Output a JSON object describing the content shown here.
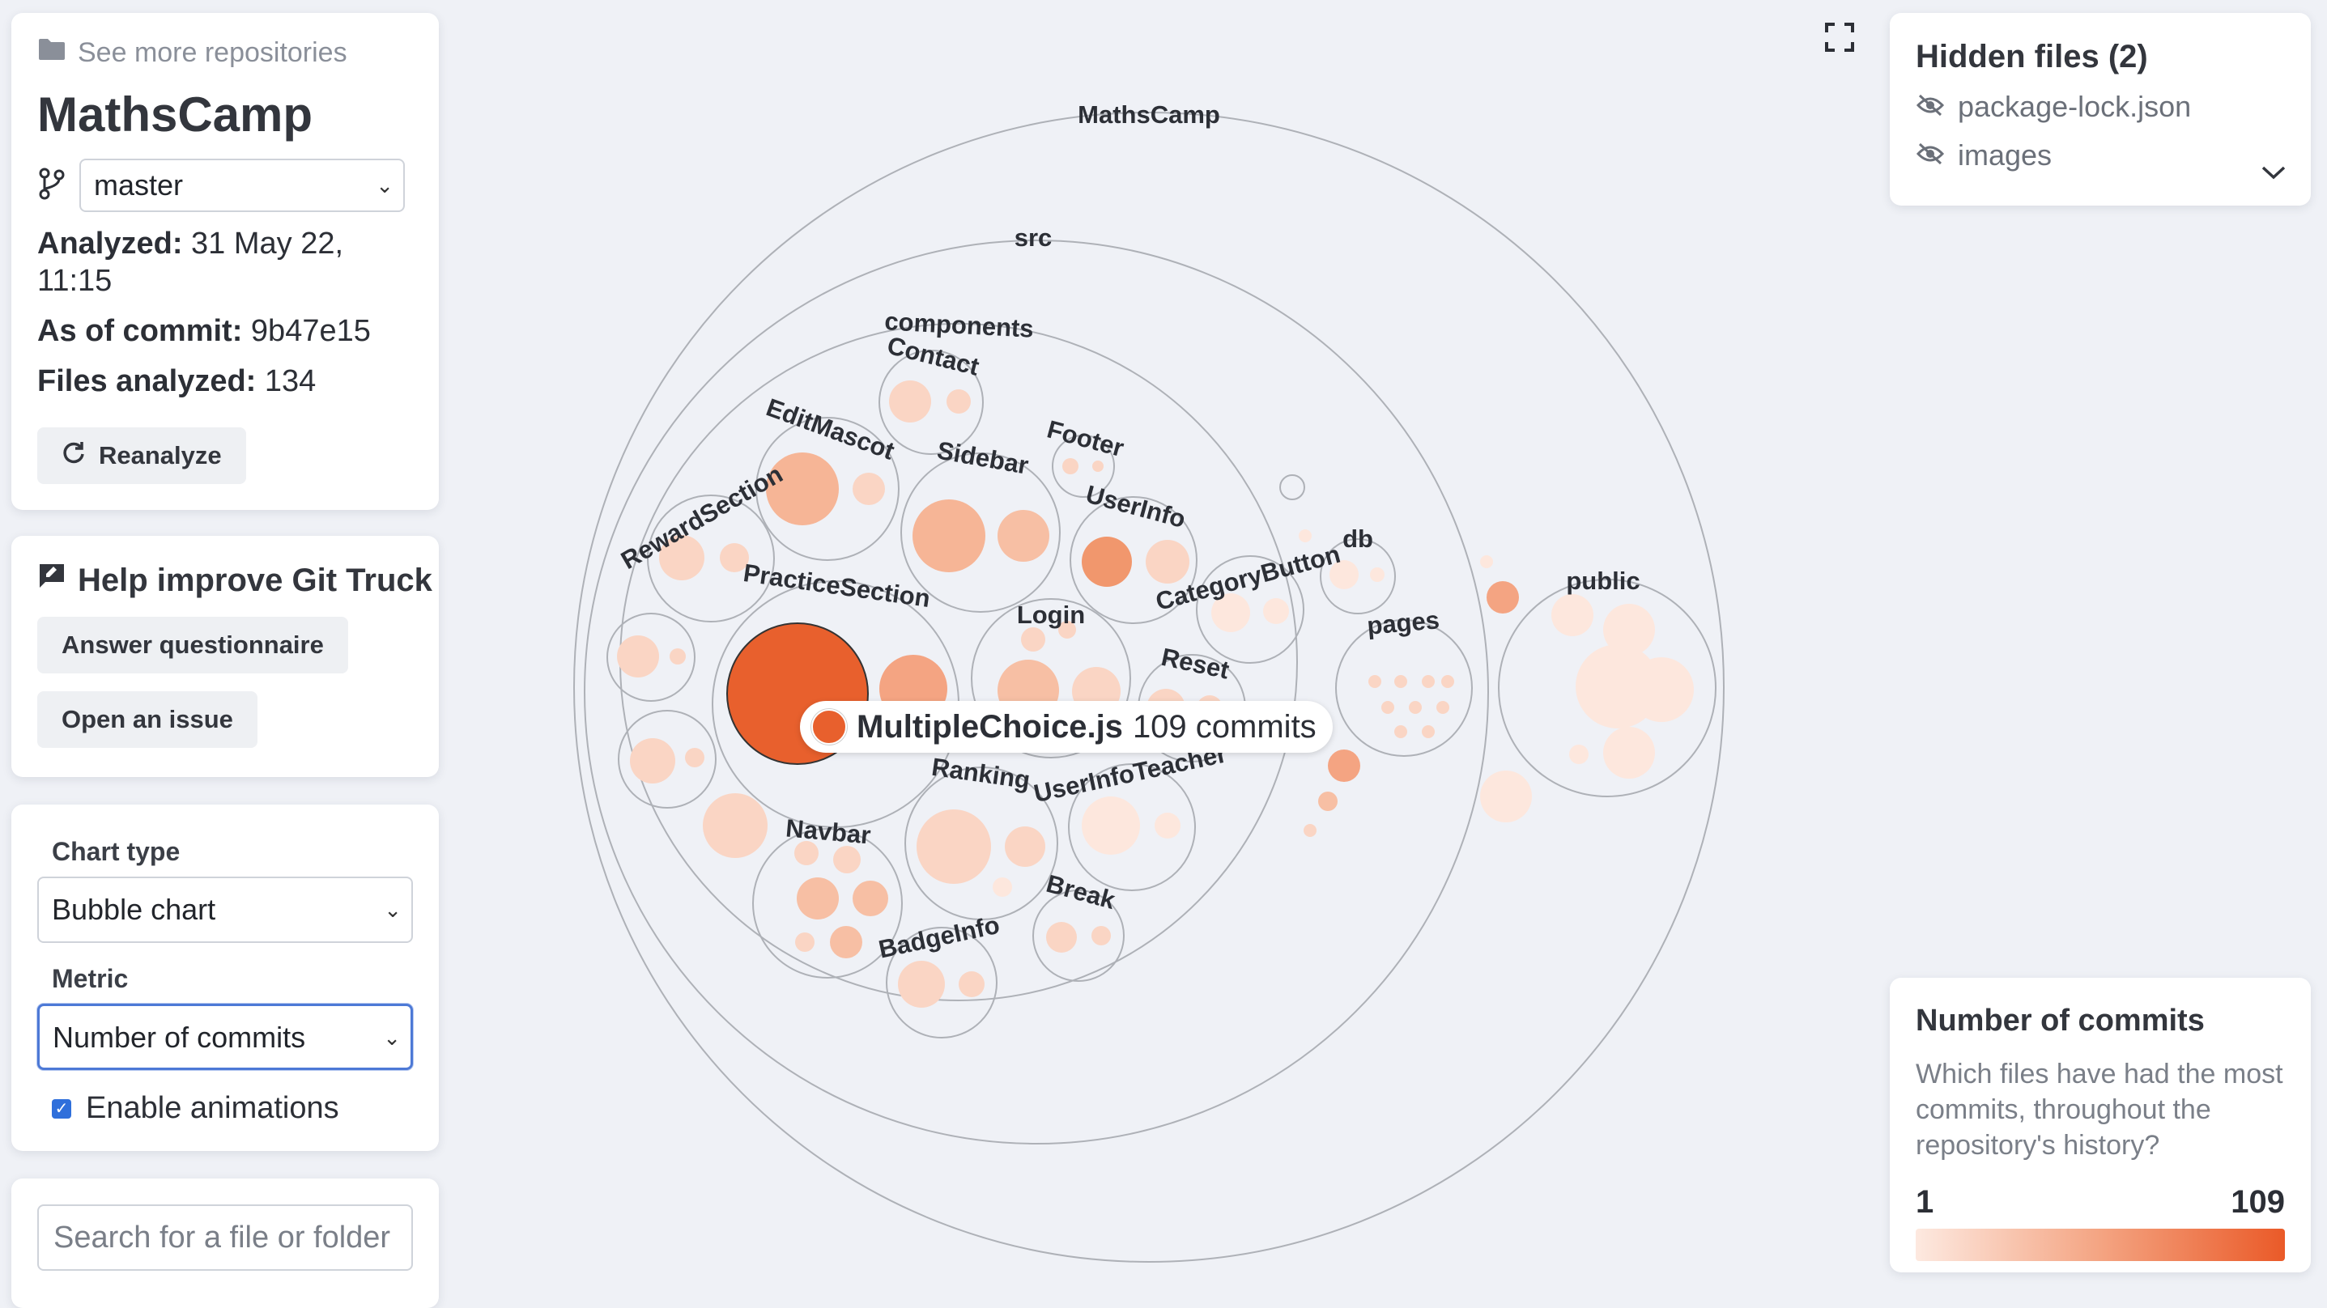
{
  "repo": {
    "see_more": "See more repositories",
    "name": "MathsCamp",
    "branch": "master",
    "analyzed_label": "Analyzed:",
    "analyzed_value": "31 May 22, 11:15",
    "commit_label": "As of commit:",
    "commit_value": "9b47e15",
    "files_label": "Files analyzed:",
    "files_value": "134",
    "reanalyze": "Reanalyze"
  },
  "help": {
    "title": "Help improve Git Truck",
    "questionnaire": "Answer questionnaire",
    "issue": "Open an issue"
  },
  "settings": {
    "chart_type_label": "Chart type",
    "chart_type_value": "Bubble chart",
    "metric_label": "Metric",
    "metric_value": "Number of commits",
    "animations_label": "Enable animations",
    "animations_enabled": true
  },
  "search": {
    "placeholder": "Search for a file or folder"
  },
  "hidden_files": {
    "title": "Hidden files (2)",
    "items": [
      "package-lock.json",
      "images"
    ]
  },
  "legend": {
    "title": "Number of commits",
    "description": "Which files have had the most commits, throughout the repository's history?",
    "min": "1",
    "max": "109",
    "colors": [
      "#fde9e0",
      "#ea5a28"
    ]
  },
  "tooltip": {
    "file": "MultipleChoice.js",
    "commits": "109 commits"
  },
  "folders": {
    "root": "MathsCamp",
    "src": "src",
    "components": "components",
    "contact": "Contact",
    "edit_mascot": "EditMascot",
    "footer": "Footer",
    "sidebar": "Sidebar",
    "user_info": "UserInfo",
    "reward_section": "RewardSection",
    "practice_section": "PracticeSection",
    "login": "Login",
    "category_button": "CategoryButton",
    "db": "db",
    "pages": "pages",
    "public": "public",
    "reset": "Reset",
    "ranking": "Ranking",
    "user_info_teacher": "UserInfoTeacher",
    "navbar": "Navbar",
    "break": "Break",
    "badge_info": "BadgeInfo"
  }
}
